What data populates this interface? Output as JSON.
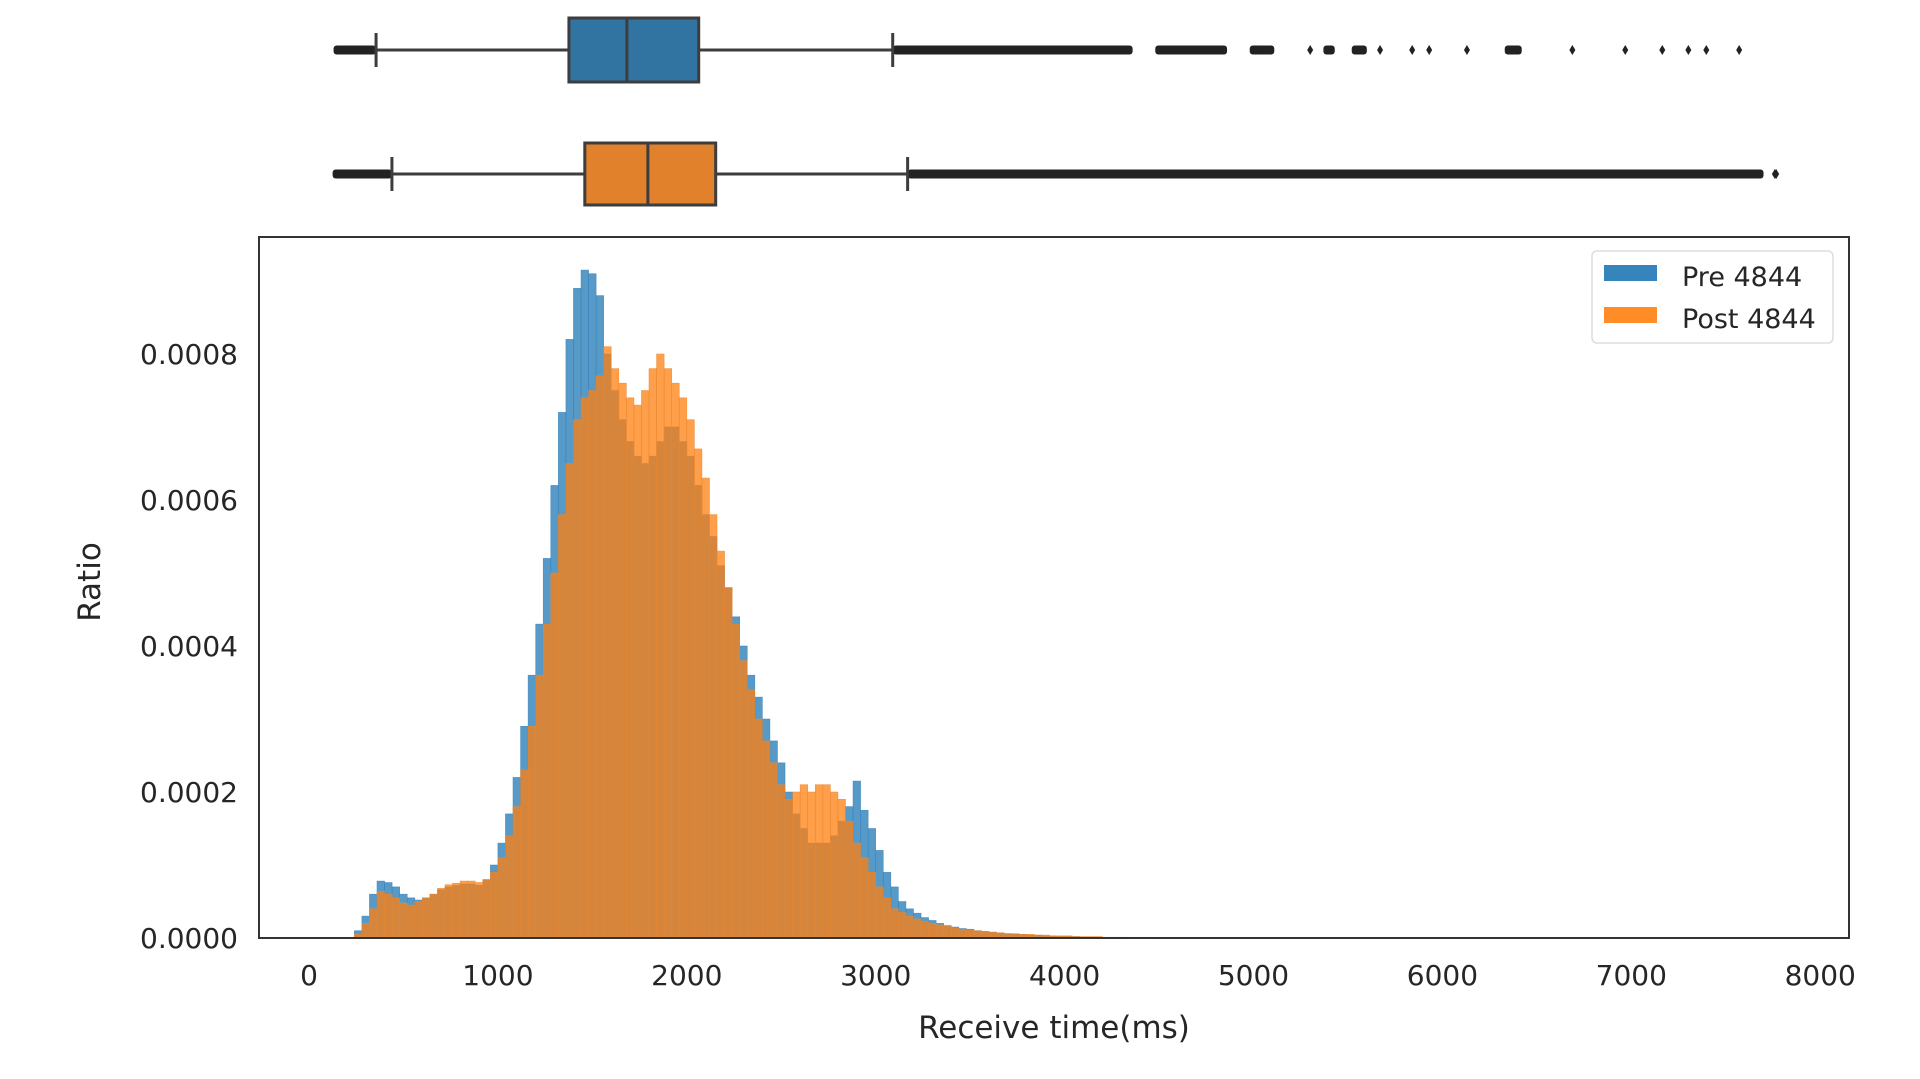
{
  "chart_data": {
    "type": "histogram+boxplot",
    "title": "",
    "xlabel": "Receive time(ms)",
    "ylabel": "Ratio",
    "xlim": [
      -250,
      8150
    ],
    "ylim": [
      0,
      0.00095
    ],
    "x_ticks": [
      0,
      1000,
      2000,
      3000,
      4000,
      5000,
      6000,
      7000,
      8000
    ],
    "x_tick_labels": [
      "0",
      "1000",
      "2000",
      "3000",
      "4000",
      "5000",
      "6000",
      "7000",
      "8000"
    ],
    "y_ticks": [
      0,
      0.0002,
      0.0004,
      0.0006,
      0.0008
    ],
    "y_tick_labels": [
      "0.0000",
      "0.0002",
      "0.0004",
      "0.0006",
      "0.0008"
    ],
    "grid": false,
    "legend_position": "upper right",
    "bin_width_ms": 40,
    "bin_start_ms": 240,
    "series": [
      {
        "name": "Pre 4844",
        "color": "#1f77b4",
        "box_color": "#3274a1",
        "values": [
          1e-05,
          3e-05,
          6e-05,
          7.8e-05,
          7.6e-05,
          7e-05,
          6e-05,
          5.5e-05,
          5.2e-05,
          5.5e-05,
          6e-05,
          6.6e-05,
          7e-05,
          7.2e-05,
          7.4e-05,
          7.4e-05,
          7.2e-05,
          8e-05,
          0.0001,
          0.00013,
          0.00017,
          0.00022,
          0.00029,
          0.00036,
          0.00043,
          0.00052,
          0.00062,
          0.00072,
          0.00082,
          0.00089,
          0.000915,
          0.00091,
          0.00088,
          0.0008,
          0.00075,
          0.00071,
          0.00068,
          0.00066,
          0.00065,
          0.00066,
          0.00068,
          0.0007,
          0.0007,
          0.00068,
          0.00066,
          0.00062,
          0.00058,
          0.00055,
          0.00051,
          0.00048,
          0.00044,
          0.0004,
          0.00036,
          0.00033,
          0.0003,
          0.00027,
          0.00024,
          0.0002,
          0.00017,
          0.00015,
          0.00013,
          0.00013,
          0.00013,
          0.00014,
          0.00016,
          0.00018,
          0.000215,
          0.000175,
          0.00015,
          0.00012,
          9e-05,
          7e-05,
          5e-05,
          4e-05,
          3.4e-05,
          2.8e-05,
          2.4e-05,
          2e-05,
          1.7e-05,
          1.5e-05,
          1.3e-05,
          1.2e-05,
          1e-05,
          9e-06,
          8e-06,
          7e-06,
          6e-06,
          5e-06,
          5e-06,
          4e-06,
          4e-06,
          3e-06,
          3e-06,
          2e-06,
          2e-06,
          2e-06,
          1e-06,
          1e-06,
          1e-06,
          1e-06,
          1e-06,
          1e-06,
          5e-07,
          5e-07,
          5e-07,
          5e-07,
          5e-07,
          5e-07,
          5e-07,
          5e-07
        ],
        "box": {
          "whisker_low": 355,
          "q1": 1376,
          "median": 1683,
          "q3": 2063,
          "whisker_high": 3090,
          "min_outlier": 130,
          "max_outlier": 7571
        },
        "outlier_ranges_ms": [
          [
            130,
            355
          ],
          [
            3090,
            4360
          ],
          [
            4480,
            4860
          ],
          [
            4980,
            5110
          ],
          [
            5300
          ],
          [
            5370,
            5430
          ],
          [
            5520,
            5600
          ],
          [
            5670
          ],
          [
            5840
          ],
          [
            5930
          ],
          [
            6130
          ],
          [
            6330,
            6420
          ],
          [
            6688
          ],
          [
            6968
          ],
          [
            7164
          ],
          [
            7302
          ],
          [
            7397
          ],
          [
            7571
          ]
        ]
      },
      {
        "name": "Post 4844",
        "color": "#ff7f0e",
        "box_color": "#e1812c",
        "values": [
          5e-06,
          2e-05,
          4e-05,
          6.4e-05,
          6e-05,
          5.5e-05,
          4.8e-05,
          4.5e-05,
          5e-05,
          5.5e-05,
          6e-05,
          6.8e-05,
          7.3e-05,
          7.5e-05,
          7.8e-05,
          7.8e-05,
          7.6e-05,
          8e-05,
          9e-05,
          0.00011,
          0.00014,
          0.00018,
          0.00023,
          0.00029,
          0.00036,
          0.00043,
          0.0005,
          0.00058,
          0.00065,
          0.00071,
          0.00074,
          0.00075,
          0.00077,
          0.00081,
          0.00078,
          0.00076,
          0.00074,
          0.00073,
          0.00075,
          0.00078,
          0.0008,
          0.00078,
          0.00076,
          0.00074,
          0.00071,
          0.00067,
          0.00063,
          0.00058,
          0.00053,
          0.00048,
          0.00043,
          0.00038,
          0.00034,
          0.0003,
          0.00027,
          0.00024,
          0.00021,
          0.00019,
          0.0002,
          0.00021,
          0.0002,
          0.00021,
          0.00021,
          0.0002,
          0.00019,
          0.00016,
          0.00013,
          0.00011,
          9e-05,
          7e-05,
          5.5e-05,
          4e-05,
          3.5e-05,
          3e-05,
          2.6e-05,
          2.3e-05,
          2e-05,
          1.8e-05,
          1.6e-05,
          1.4e-05,
          1.2e-05,
          1.1e-05,
          1e-05,
          9e-06,
          8e-06,
          7e-06,
          6e-06,
          6e-06,
          5e-06,
          5e-06,
          4e-06,
          4e-06,
          3e-06,
          3e-06,
          3e-06,
          2e-06,
          2e-06,
          2e-06,
          2e-06,
          1e-06,
          1e-06,
          1e-06,
          1e-06,
          1e-06,
          1e-06,
          1e-06,
          5e-07,
          5e-07,
          5e-07,
          5e-07
        ],
        "box": {
          "whisker_low": 439,
          "q1": 1460,
          "median": 1794,
          "q3": 2153,
          "whisker_high": 3169,
          "min_outlier": 125,
          "max_outlier": 7767
        },
        "outlier_ranges_ms": [
          [
            125,
            439
          ],
          [
            3169,
            7700
          ],
          [
            7760
          ],
          [
            7767
          ]
        ]
      }
    ]
  },
  "legend": {
    "items": [
      {
        "label": "Pre 4844",
        "color": "#1f77b4"
      },
      {
        "label": "Post 4844",
        "color": "#ff7f0e"
      }
    ]
  }
}
